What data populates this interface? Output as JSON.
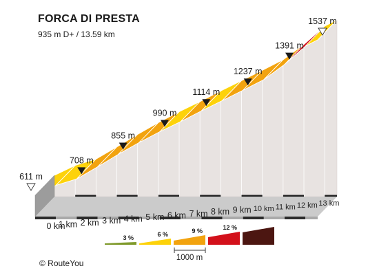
{
  "header": {
    "title": "FORCA DI PRESTA",
    "subtitle": "935 m D+ / 13.59 km"
  },
  "credit": "©  RouteYou",
  "colors": {
    "grade_3": "#7f9a2b",
    "grade_6": "#fdd20a",
    "grade_9": "#f2a30f",
    "grade_12": "#d3111b",
    "grade_max": "#4c1611",
    "wall": "#e8e3e1",
    "base": "#cbcbcb"
  },
  "chart_data": {
    "type": "area",
    "title": "FORCA DI PRESTA",
    "subtitle": "935 m D+ / 13.59 km",
    "distance_km": [
      0,
      1,
      2,
      3,
      4,
      5,
      6,
      7,
      8,
      9,
      10,
      11,
      12,
      13,
      13.59
    ],
    "elevation_m": [
      611,
      670,
      708,
      780,
      855,
      925,
      990,
      1050,
      1114,
      1175,
      1237,
      1300,
      1391,
      1500,
      1537
    ],
    "segment_grade_class": [
      "grade_6",
      "grade_6",
      "grade_9",
      "grade_9",
      "grade_9",
      "grade_9",
      "grade_6",
      "grade_9",
      "grade_6",
      "grade_9",
      "grade_9",
      "grade_9",
      "grade_12",
      "grade_6"
    ],
    "x_tick_labels": [
      "0 km",
      "1 km",
      "2 km",
      "3 km",
      "4 km",
      "5 km",
      "6 km",
      "7 km",
      "8 km",
      "9 km",
      "10 km",
      "11 km",
      "12 km",
      "13 km"
    ],
    "markers": [
      {
        "label": "611 m",
        "style": "start"
      },
      {
        "label": "708 m",
        "style": "point"
      },
      {
        "label": "855 m",
        "style": "point"
      },
      {
        "label": "990 m",
        "style": "point"
      },
      {
        "label": "1114 m",
        "style": "point"
      },
      {
        "label": "1237 m",
        "style": "point"
      },
      {
        "label": "1391 m",
        "style": "point"
      },
      {
        "label": "1537 m",
        "style": "end"
      }
    ],
    "legend": [
      {
        "label": "3 %",
        "color_key": "grade_3"
      },
      {
        "label": "6 %",
        "color_key": "grade_6"
      },
      {
        "label": "9 %",
        "color_key": "grade_9"
      },
      {
        "label": "12 %",
        "color_key": "grade_12"
      },
      {
        "label": "",
        "color_key": "grade_max"
      }
    ],
    "scale_label": "1000 m"
  }
}
